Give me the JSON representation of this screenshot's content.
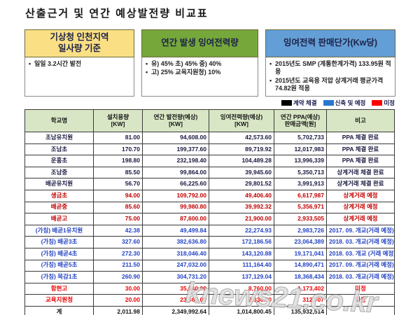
{
  "title": "산출근거 및  연간 예상발전량 비교표",
  "boxes": [
    {
      "header_line1": "기상청 인천지역",
      "header_line2": "일사량 기준",
      "header_bg": "#fbdf84",
      "items": [
        "일일 3.2시간 발전"
      ]
    },
    {
      "header_line1": "연간 발생 잉여전력량",
      "header_line2": "",
      "header_bg": "#76a73a",
      "items": [
        "유) 45%  초) 45%  중) 40%",
        "고) 25%  교육지원청) 10%"
      ]
    },
    {
      "header_line1": "잉여전력 판매단가(Kw당)",
      "header_line2": "",
      "header_bg": "#649ed6",
      "items": [
        "2015년도 SMP (계통한계가격) 133.95원 적용",
        "2015년도 교육용 저압 상계거래 평균가격 74.82원 적용"
      ]
    }
  ],
  "legend": [
    {
      "label": "계약 체결",
      "color": "#000000"
    },
    {
      "label": "신축 및 예정",
      "color": "#2878d0"
    },
    {
      "label": "미정",
      "color": "#ff0000"
    }
  ],
  "table": {
    "columns": [
      {
        "l1": "학교명",
        "l2": ""
      },
      {
        "l1": "설치용량",
        "l2": "[KW]"
      },
      {
        "l1": "연간 발전량(예상)",
        "l2": "[KW]"
      },
      {
        "l1": "잉여전력량(예상)",
        "l2": "[KW]"
      },
      {
        "l1": "연간 PPA(예상)",
        "l2": "판매금액[원]"
      },
      {
        "l1": "비고",
        "l2": ""
      }
    ],
    "rows": [
      {
        "name": "조남유치원",
        "capacity": "81.00",
        "annual": "94,608.00",
        "surplus": "42,573.60",
        "sale": "5,702,733",
        "note": "PPA 체결 완료",
        "status": "done"
      },
      {
        "name": "조남초",
        "capacity": "170.70",
        "annual": "199,377.60",
        "surplus": "89,719.92",
        "sale": "12,017,983",
        "note": "PPA 체결 완료",
        "status": "done"
      },
      {
        "name": "운흥초",
        "capacity": "198.80",
        "annual": "232,198.40",
        "surplus": "104,489.28",
        "sale": "13,996,339",
        "note": "PPA 체결 완료",
        "status": "done"
      },
      {
        "name": "조남중",
        "capacity": "85.50",
        "annual": "99,864.00",
        "surplus": "39,945.60",
        "sale": "5,350,713",
        "note": "상계거래 체결 완료",
        "status": "done"
      },
      {
        "name": "배곧유치원",
        "capacity": "56.70",
        "annual": "66,225.60",
        "surplus": "29,801.52",
        "sale": "3,991,913",
        "note": "상계거래 체결 완료",
        "status": "done"
      },
      {
        "name": "생금초",
        "capacity": "94.00",
        "annual": "109,792.00",
        "surplus": "49,406.40",
        "sale": "6,617,987",
        "note": "상계거래 예정",
        "status": "pending"
      },
      {
        "name": "배곧중",
        "capacity": "85.60",
        "annual": "99,980.80",
        "surplus": "39,992.32",
        "sale": "5,356,971",
        "note": "상계거래 예정",
        "status": "pending"
      },
      {
        "name": "배곧고",
        "capacity": "75.00",
        "annual": "87,600.00",
        "surplus": "21,900.00",
        "sale": "2,933,505",
        "note": "상계거래 예정",
        "status": "pending"
      },
      {
        "name": "(가칭) 배곧1유치원",
        "capacity": "42.38",
        "annual": "49,499.84",
        "surplus": "22,274.93",
        "sale": "2,983,726",
        "note": "2017. 09. 개교(거래 예정)",
        "status": "new"
      },
      {
        "name": "(가칭) 배곧3초",
        "capacity": "327.60",
        "annual": "382,636.80",
        "surplus": "172,186.56",
        "sale": "23,064,389",
        "note": "2018. 03. 개교(거래 예정)",
        "status": "new"
      },
      {
        "name": "(가칭) 배곧4초",
        "capacity": "272.30",
        "annual": "318,046.40",
        "surplus": "143,120.88",
        "sale": "19,171,041",
        "note": "2018. 03. 개교 (거래 예정)",
        "status": "new"
      },
      {
        "name": "(가칭) 배곧5초",
        "capacity": "211.50",
        "annual": "247,032.00",
        "surplus": "111,164.40",
        "sale": "14,890,471",
        "note": "2017. 09. 개교(거래 예정)",
        "status": "new"
      },
      {
        "name": "(가칭) 목감1초",
        "capacity": "260.90",
        "annual": "304,731.20",
        "surplus": "137,129.04",
        "sale": "18,368,434",
        "note": "2018. 03. 개교(거래 예정)",
        "status": "new"
      },
      {
        "name": "함현고",
        "capacity": "30.00",
        "annual": "35,040.00",
        "surplus": "8,760.00",
        "sale": "1,173,402",
        "note": "미정",
        "status": "tbd"
      },
      {
        "name": "교육지원청",
        "capacity": "20.00",
        "annual": "23,360.00",
        "surplus": "2,336.00",
        "sale": "312,907",
        "note": "미정",
        "status": "tbd"
      }
    ],
    "total": {
      "name": "계",
      "capacity": "2,011.98",
      "annual": "2,349,992.64",
      "surplus": "1,014,800.45",
      "sale": "135,932,514",
      "note": "",
      "status": "total"
    }
  },
  "watermark": "knews21.co.kr"
}
